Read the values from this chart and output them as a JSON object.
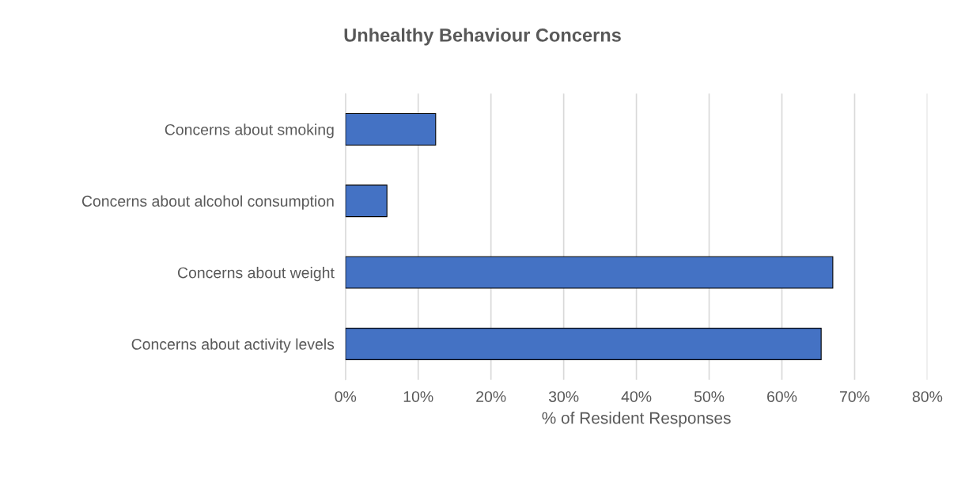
{
  "chart_data": {
    "type": "bar",
    "orientation": "horizontal",
    "title": "Unhealthy Behaviour Concerns",
    "xlabel": "% of Resident Responses",
    "categories": [
      "Concerns about smoking",
      "Concerns about alcohol consumption",
      "Concerns about weight",
      "Concerns about activity levels"
    ],
    "values": [
      12.4,
      5.7,
      67,
      65.4
    ],
    "color": "#4472c4",
    "xlim": [
      0,
      80
    ],
    "xticks": [
      {
        "value": 0,
        "label": "0%"
      },
      {
        "value": 10,
        "label": "10%"
      },
      {
        "value": 20,
        "label": "20%"
      },
      {
        "value": 30,
        "label": "30%"
      },
      {
        "value": 40,
        "label": "40%"
      },
      {
        "value": 50,
        "label": "50%"
      },
      {
        "value": 60,
        "label": "60%"
      },
      {
        "value": 70,
        "label": "70%"
      },
      {
        "value": 80,
        "label": "80%"
      }
    ],
    "grid": "x"
  }
}
